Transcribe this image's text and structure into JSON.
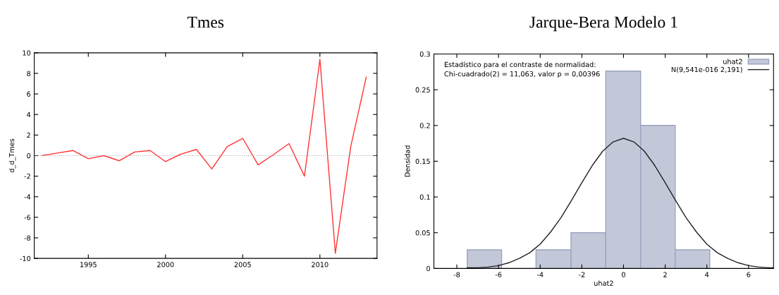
{
  "chart_data": [
    {
      "type": "line",
      "title": "Tmes",
      "ylabel": "d_d_Tmes",
      "x": [
        1992,
        1993,
        1994,
        1995,
        1996,
        1997,
        1998,
        1999,
        2000,
        2001,
        2002,
        2003,
        2004,
        2005,
        2006,
        2007,
        2008,
        2009,
        2010,
        2011,
        2012,
        2013
      ],
      "series": [
        {
          "color": "#ff3333",
          "values": [
            0,
            0.25,
            0.5,
            -0.3,
            0,
            -0.5,
            0.35,
            0.5,
            -0.58,
            0.15,
            0.6,
            -1.3,
            0.88,
            1.68,
            -0.9,
            0.1,
            1.17,
            -2.0,
            9.37,
            -9.5,
            0.9,
            7.63
          ]
        }
      ],
      "xlim": [
        1991.5,
        2013.7
      ],
      "ylim": [
        -10,
        10
      ],
      "xticks": [
        1995,
        2000,
        2005,
        2010
      ],
      "yticks": [
        -10,
        -8,
        -6,
        -4,
        -2,
        0,
        2,
        4,
        6,
        8,
        10
      ],
      "ref_lines": [
        {
          "axis": "y",
          "value": 0,
          "color": "#aaaaaa",
          "line_style": "dotted"
        }
      ],
      "grid": false,
      "legend": false,
      "marker": "none",
      "line_style": "solid"
    },
    {
      "type": "histogram",
      "title": "Jarque-Bera Modelo 1",
      "xlabel": "uhat2",
      "ylabel": "Densidad",
      "annotations": [
        "Estadístico para el contraste de normalidad:",
        "Chi-cuadrado(2) = 11,063, valor p = 0,00396"
      ],
      "series": [
        {
          "name": "uhat2",
          "type": "histogram",
          "color": "#c3c8d9",
          "bins": [
            -7.5,
            -5.85,
            -4.2,
            -2.52,
            -0.85,
            0.82,
            2.48,
            4.14
          ],
          "values": [
            0.026,
            0,
            0.026,
            0.05,
            0.276,
            0.2,
            0.026
          ]
        },
        {
          "name": "N(9,541e-016 2,191)",
          "type": "line",
          "color": "#222222",
          "x": [
            -7.5,
            -7,
            -6.5,
            -6,
            -5.5,
            -5,
            -4.5,
            -4,
            -3.5,
            -3,
            -2.5,
            -2,
            -1.5,
            -1,
            -0.5,
            0,
            0.5,
            1,
            1.5,
            2,
            2.5,
            3,
            3.5,
            4,
            4.5,
            5,
            5.5,
            6,
            6.5,
            7,
            7.2
          ],
          "values": [
            0.001,
            0.001,
            0.002,
            0.004,
            0.008,
            0.014,
            0.022,
            0.034,
            0.051,
            0.071,
            0.095,
            0.12,
            0.144,
            0.164,
            0.177,
            0.182,
            0.177,
            0.164,
            0.144,
            0.12,
            0.095,
            0.071,
            0.051,
            0.034,
            0.022,
            0.014,
            0.008,
            0.004,
            0.002,
            0.001,
            0.001
          ]
        }
      ],
      "xlim": [
        -9.1,
        7.2
      ],
      "ylim": [
        0,
        0.3
      ],
      "xticks": [
        -8,
        -6,
        -4,
        -2,
        0,
        2,
        4,
        6
      ],
      "yticks": [
        0,
        0.05,
        0.1,
        0.15,
        0.2,
        0.25,
        0.3
      ],
      "grid": false,
      "legend": "top right"
    }
  ]
}
